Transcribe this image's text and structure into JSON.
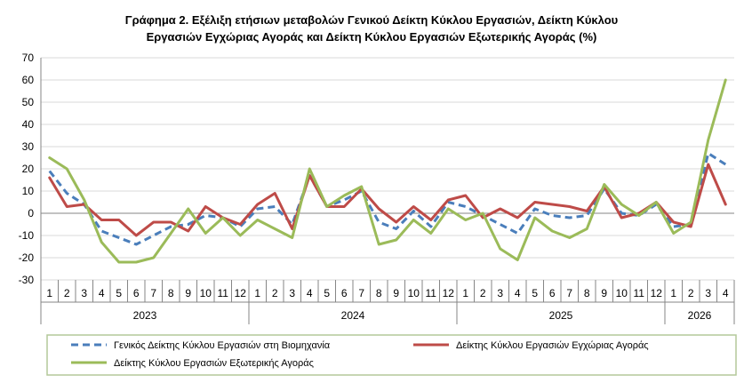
{
  "chart_data": {
    "type": "line",
    "title": "Γράφημα 2. Εξέλιξη ετήσιων μεταβολών Γενικού Δείκτη Κύκλου Εργασιών,  Δείκτη Κύκλου Εργασιών Εγχώριας Αγοράς και Δείκτη Κύκλου Εργασιών Εξωτερικής Αγοράς  (%)",
    "title_lines": [
      "Γράφημα 2. Εξέλιξη ετήσιων μεταβολών Γενικού Δείκτη Κύκλου Εργασιών,  Δείκτη Κύκλου",
      "Εργασιών Εγχώριας Αγοράς και Δείκτη Κύκλου Εργασιών Εξωτερικής Αγοράς  (%)"
    ],
    "xlabel": "",
    "ylabel": "",
    "ylim": [
      -30,
      70
    ],
    "yticks": [
      -30,
      -20,
      -10,
      0,
      10,
      20,
      30,
      40,
      50,
      60,
      70
    ],
    "grid": true,
    "legend_position": "bottom",
    "months": [
      "1",
      "2",
      "3",
      "4",
      "5",
      "6",
      "7",
      "8",
      "9",
      "10",
      "11",
      "12",
      "1",
      "2",
      "3",
      "4",
      "5",
      "6",
      "7",
      "8",
      "9",
      "10",
      "11",
      "12",
      "1",
      "2",
      "3",
      "4",
      "5",
      "6",
      "7",
      "8",
      "9",
      "10",
      "11",
      "12",
      "1",
      "2",
      "3",
      "4"
    ],
    "years": [
      {
        "label": "2023",
        "count": 12
      },
      {
        "label": "2024",
        "count": 12
      },
      {
        "label": "2025",
        "count": 12
      },
      {
        "label": "2026",
        "count": 4
      }
    ],
    "series": [
      {
        "name": "Γενικός Δείκτης Κύκλου Εργασιών στη Βιομηχανία",
        "color": "#4a7ebb",
        "style": "dashed",
        "values": [
          19,
          9,
          4,
          -8,
          -11,
          -14,
          -10,
          -6,
          -5,
          -1,
          -2,
          -6,
          2,
          3,
          -5,
          17,
          3,
          6,
          10,
          -4,
          -7,
          1,
          -6,
          5,
          3,
          -1,
          -5,
          -9,
          2,
          -1,
          -2,
          -1,
          11,
          0,
          -1,
          4,
          -6,
          -5,
          27,
          22
        ]
      },
      {
        "name": "Δείκτης Κύκλου Εργασιών  Εγχώριας Αγοράς",
        "color": "#be4b48",
        "style": "solid",
        "values": [
          16,
          3,
          4,
          -3,
          -3,
          -10,
          -4,
          -4,
          -8,
          3,
          -2,
          -5,
          4,
          9,
          -7,
          17,
          3,
          3,
          11,
          2,
          -4,
          3,
          -3,
          6,
          8,
          -2,
          2,
          -2,
          5,
          4,
          3,
          1,
          12,
          -2,
          0,
          5,
          -4,
          -6,
          22,
          4
        ]
      },
      {
        "name": "Δείκτης Κύκλου Εργασιών  Εξωτερικής Αγοράς",
        "color": "#9bbb59",
        "style": "solid",
        "values": [
          25,
          20,
          6,
          -13,
          -22,
          -22,
          -20,
          -9,
          2,
          -9,
          -2,
          -10,
          -3,
          -7,
          -11,
          20,
          3,
          8,
          12,
          -14,
          -12,
          -3,
          -9,
          2,
          -3,
          0,
          -16,
          -21,
          -2,
          -8,
          -11,
          -7,
          13,
          4,
          -1,
          5,
          -9,
          -4,
          33,
          60
        ]
      }
    ]
  }
}
